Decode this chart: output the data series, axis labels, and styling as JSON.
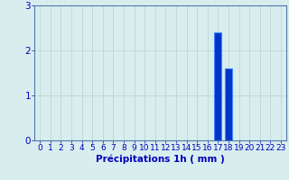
{
  "hours": [
    0,
    1,
    2,
    3,
    4,
    5,
    6,
    7,
    8,
    9,
    10,
    11,
    12,
    13,
    14,
    15,
    16,
    17,
    18,
    19,
    20,
    21,
    22,
    23
  ],
  "values": [
    0,
    0,
    0,
    0,
    0,
    0,
    0,
    0,
    0,
    0,
    0,
    0,
    0,
    0,
    0,
    0,
    0,
    2.4,
    1.6,
    0,
    0,
    0,
    0,
    0
  ],
  "bar_color": "#0033cc",
  "bar_edge_color": "#4488ff",
  "background_color": "#d8eeee",
  "grid_color": "#b8d0d0",
  "axis_color": "#5577aa",
  "tick_color": "#0000bb",
  "xlabel": "Précipitations 1h ( mm )",
  "xlabel_color": "#0000bb",
  "ylim": [
    0,
    3
  ],
  "yticks": [
    0,
    1,
    2,
    3
  ],
  "xlim": [
    -0.5,
    23.5
  ],
  "xlabel_fontsize": 7.5,
  "tick_fontsize": 6.5,
  "ytick_fontsize": 7.5
}
